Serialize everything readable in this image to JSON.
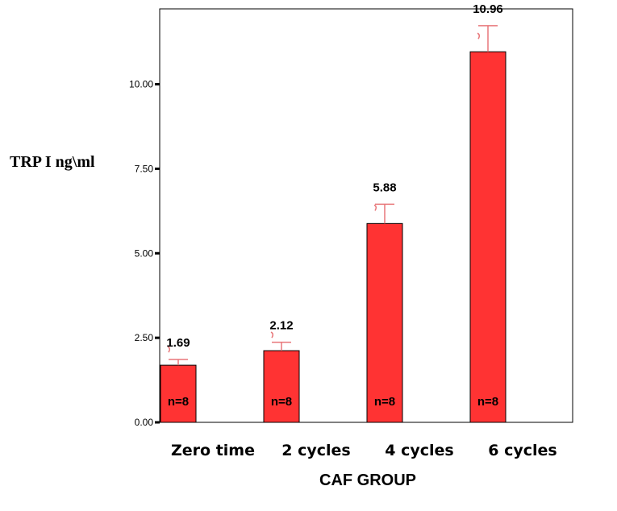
{
  "chart_data": {
    "type": "bar",
    "categories": [
      "Zero time",
      "2 cycles",
      "4 cycles",
      "6 cycles"
    ],
    "values": [
      1.69,
      2.12,
      5.88,
      10.96
    ],
    "error_upper": [
      1.86,
      2.37,
      6.45,
      11.73
    ],
    "value_labels": [
      "1.69",
      "2.12",
      "5.88",
      "10.96"
    ],
    "n_labels": [
      "n=8",
      "n=8",
      "n=8",
      "n=8"
    ],
    "yticks": [
      0,
      2.5,
      5,
      7.5,
      10
    ],
    "ytick_labels": [
      "0.00",
      "2.50",
      "5.00",
      "7.50",
      "10.00"
    ],
    "ylim": [
      0,
      12.4
    ],
    "xlabel": "CAF GROUP",
    "ylabel": "TRP I ng\\ml",
    "grid": false,
    "colors": {
      "bar": "#ff3333",
      "bar_edge": "#000000",
      "error_bar": "#e8777a"
    }
  }
}
